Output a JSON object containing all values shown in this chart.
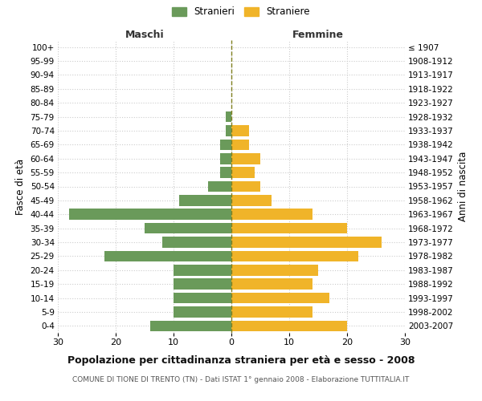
{
  "age_groups": [
    "0-4",
    "5-9",
    "10-14",
    "15-19",
    "20-24",
    "25-29",
    "30-34",
    "35-39",
    "40-44",
    "45-49",
    "50-54",
    "55-59",
    "60-64",
    "65-69",
    "70-74",
    "75-79",
    "80-84",
    "85-89",
    "90-94",
    "95-99",
    "100+"
  ],
  "birth_years": [
    "2003-2007",
    "1998-2002",
    "1993-1997",
    "1988-1992",
    "1983-1987",
    "1978-1982",
    "1973-1977",
    "1968-1972",
    "1963-1967",
    "1958-1962",
    "1953-1957",
    "1948-1952",
    "1943-1947",
    "1938-1942",
    "1933-1937",
    "1928-1932",
    "1923-1927",
    "1918-1922",
    "1913-1917",
    "1908-1912",
    "≤ 1907"
  ],
  "maschi": [
    14,
    10,
    10,
    10,
    10,
    22,
    12,
    15,
    28,
    9,
    4,
    2,
    2,
    2,
    1,
    1,
    0,
    0,
    0,
    0,
    0
  ],
  "femmine": [
    20,
    14,
    17,
    14,
    15,
    22,
    26,
    20,
    14,
    7,
    5,
    4,
    5,
    3,
    3,
    0,
    0,
    0,
    0,
    0,
    0
  ],
  "maschi_color": "#6a9a5a",
  "femmine_color": "#f0b429",
  "background_color": "#ffffff",
  "grid_color": "#cccccc",
  "xlim": 30,
  "title": "Popolazione per cittadinanza straniera per età e sesso - 2008",
  "subtitle": "COMUNE DI TIONE DI TRENTO (TN) - Dati ISTAT 1° gennaio 2008 - Elaborazione TUTTITALIA.IT",
  "ylabel_left": "Fasce di età",
  "ylabel_right": "Anni di nascita",
  "xlabel_maschi": "Maschi",
  "xlabel_femmine": "Femmine",
  "legend_maschi": "Stranieri",
  "legend_femmine": "Straniere",
  "xticks": [
    -30,
    -20,
    -10,
    0,
    10,
    20,
    30
  ]
}
